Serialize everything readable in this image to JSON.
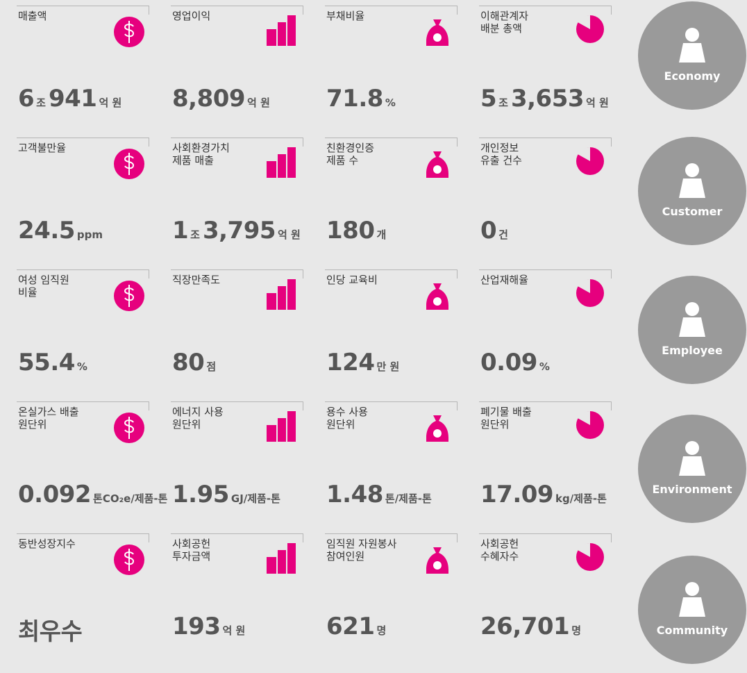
{
  "tiles": [
    {
      "label": "매출액",
      "value": [
        [
          "6",
          "조"
        ],
        [
          "941",
          "억 원"
        ]
      ]
    },
    {
      "label": "영업이익",
      "value": [
        [
          "8,809",
          "억 원"
        ]
      ]
    },
    {
      "label": "부채비율",
      "value": [
        [
          "71.8",
          "%"
        ]
      ]
    },
    {
      "label": "이해관계자\n배분 총액",
      "value": [
        [
          "5",
          "조"
        ],
        [
          "3,653",
          "억 원"
        ]
      ]
    },
    {
      "label": "고객불만율",
      "value": [
        [
          "24.5",
          "ppm"
        ]
      ]
    },
    {
      "label": "사회환경가치\n제품 매출",
      "value": [
        [
          "1",
          "조"
        ],
        [
          "3,795",
          "억 원"
        ]
      ]
    },
    {
      "label": "친환경인증\n제품 수",
      "value": [
        [
          "180",
          "개"
        ]
      ]
    },
    {
      "label": "개인정보\n유출 건수",
      "value": [
        [
          "0",
          "건"
        ]
      ]
    },
    {
      "label": "여성 임직원\n비율",
      "value": [
        [
          "55.4",
          "%"
        ]
      ]
    },
    {
      "label": "직장만족도",
      "value": [
        [
          "80",
          "점"
        ]
      ]
    },
    {
      "label": "인당 교육비",
      "value": [
        [
          "124",
          "만 원"
        ]
      ]
    },
    {
      "label": "산업재해율",
      "value": [
        [
          "0.09",
          "%"
        ]
      ]
    },
    {
      "label": "온실가스 배출\n원단위",
      "value": [
        [
          "0.092",
          "톤CO₂e/제품-톤"
        ]
      ]
    },
    {
      "label": "에너지 사용\n원단위",
      "value": [
        [
          "1.95",
          "GJ/제품-톤"
        ]
      ]
    },
    {
      "label": "용수 사용\n원단위",
      "value": [
        [
          "1.48",
          "톤/제품-톤"
        ]
      ]
    },
    {
      "label": "폐기물 배출\n원단위",
      "value": [
        [
          "17.09",
          "kg/제품-톤"
        ]
      ]
    },
    {
      "label": "동반성장지수",
      "value": [
        [
          "최우수"
        ]
      ]
    },
    {
      "label": "사회공헌\n투자금액",
      "value": [
        [
          "193",
          "억 원"
        ]
      ]
    },
    {
      "label": "임직원 자원봉사\n참여인원",
      "value": [
        [
          "621",
          "명"
        ]
      ]
    },
    {
      "label": "사회공헌\n수혜자수",
      "value": [
        [
          "26,701",
          "명"
        ]
      ]
    }
  ],
  "sections": [
    "Economy",
    "Customer",
    "Employee",
    "Environment",
    "Community"
  ]
}
